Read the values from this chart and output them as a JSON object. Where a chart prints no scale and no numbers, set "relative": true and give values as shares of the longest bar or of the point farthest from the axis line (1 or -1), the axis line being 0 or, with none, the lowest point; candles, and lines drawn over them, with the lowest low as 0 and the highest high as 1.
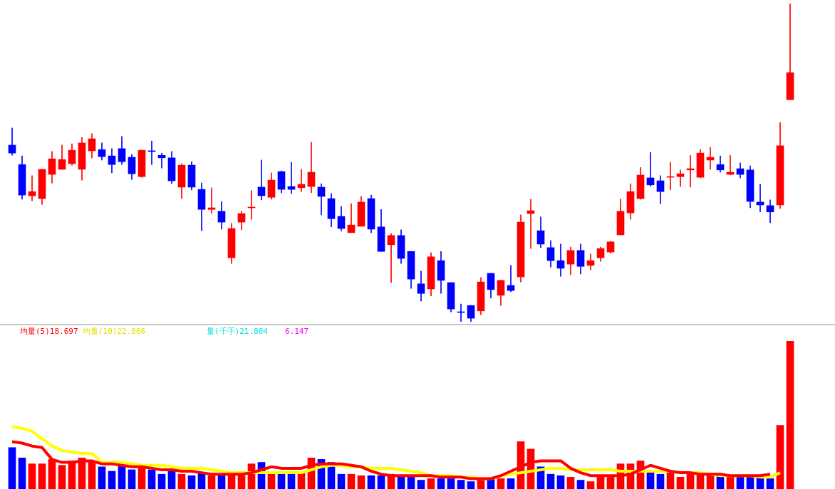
{
  "chart_data": [
    {
      "type": "candlestick",
      "relative": true,
      "categories": [
        null,
        null,
        null,
        null,
        null,
        null,
        null,
        null,
        null,
        null,
        null,
        null,
        null,
        null,
        null,
        null,
        null,
        null,
        null,
        null,
        null,
        null,
        null,
        null,
        null,
        null,
        null,
        null,
        null,
        null,
        null,
        null,
        null,
        null,
        null,
        null,
        null,
        null,
        null,
        null,
        null,
        null,
        null,
        null,
        null,
        null,
        null,
        null,
        null,
        null,
        null,
        null,
        null,
        null,
        null,
        null,
        null,
        null,
        null,
        null,
        null,
        null,
        null,
        null,
        null,
        null,
        null,
        null,
        null,
        null,
        null,
        null,
        null,
        null,
        null,
        null,
        null,
        null,
        null
      ],
      "ohlc": [
        [
          0.555,
          0.609,
          0.523,
          0.53
        ],
        [
          0.494,
          0.521,
          0.385,
          0.398
        ],
        [
          0.396,
          0.459,
          0.38,
          0.409
        ],
        [
          0.387,
          0.479,
          0.369,
          0.479
        ],
        [
          0.463,
          0.535,
          0.436,
          0.512
        ],
        [
          0.479,
          0.555,
          0.479,
          0.51
        ],
        [
          0.497,
          0.559,
          0.492,
          0.539
        ],
        [
          0.479,
          0.579,
          0.445,
          0.562
        ],
        [
          0.537,
          0.591,
          0.515,
          0.575
        ],
        [
          0.541,
          0.562,
          0.508,
          0.519
        ],
        [
          0.521,
          0.544,
          0.468,
          0.494
        ],
        [
          0.544,
          0.582,
          0.494,
          0.503
        ],
        [
          0.517,
          0.526,
          0.447,
          0.465
        ],
        [
          0.456,
          0.539,
          0.454,
          0.539
        ],
        [
          0.537,
          0.568,
          0.494,
          0.535
        ],
        [
          0.523,
          0.53,
          0.483,
          0.515
        ],
        [
          0.515,
          0.535,
          0.434,
          0.443
        ],
        [
          0.423,
          0.497,
          0.387,
          0.492
        ],
        [
          0.492,
          0.503,
          0.414,
          0.423
        ],
        [
          0.416,
          0.436,
          0.286,
          0.353
        ],
        [
          0.353,
          0.421,
          0.34,
          0.358
        ],
        [
          0.347,
          0.378,
          0.291,
          0.313
        ],
        [
          0.201,
          0.309,
          0.183,
          0.293
        ],
        [
          0.313,
          0.347,
          0.289,
          0.34
        ],
        [
          0.358,
          0.412,
          0.322,
          0.36
        ],
        [
          0.423,
          0.508,
          0.383,
          0.396
        ],
        [
          0.391,
          0.468,
          0.385,
          0.445
        ],
        [
          0.472,
          0.474,
          0.405,
          0.416
        ],
        [
          0.425,
          0.501,
          0.403,
          0.416
        ],
        [
          0.421,
          0.479,
          0.409,
          0.432
        ],
        [
          0.425,
          0.564,
          0.405,
          0.47
        ],
        [
          0.423,
          0.434,
          0.336,
          0.394
        ],
        [
          0.387,
          0.403,
          0.298,
          0.324
        ],
        [
          0.331,
          0.362,
          0.286,
          0.293
        ],
        [
          0.28,
          0.371,
          0.28,
          0.304
        ],
        [
          0.3,
          0.394,
          0.3,
          0.376
        ],
        [
          0.387,
          0.398,
          0.28,
          0.291
        ],
        [
          0.298,
          0.353,
          0.221,
          0.221
        ],
        [
          0.242,
          0.277,
          0.123,
          0.271
        ],
        [
          0.271,
          0.289,
          0.183,
          0.199
        ],
        [
          0.221,
          0.221,
          0.105,
          0.134
        ],
        [
          0.119,
          0.159,
          0.065,
          0.089
        ],
        [
          0.103,
          0.217,
          0.081,
          0.204
        ],
        [
          0.192,
          0.221,
          0.089,
          0.13
        ],
        [
          0.123,
          0.123,
          0.031,
          0.04
        ],
        [
          0.031,
          0.056,
          0,
          0.029
        ],
        [
          0.051,
          0.051,
          0,
          0.011
        ],
        [
          0.034,
          0.139,
          0.022,
          0.125
        ],
        [
          0.152,
          0.152,
          0.074,
          0.101
        ],
        [
          0.083,
          0.13,
          0.051,
          0.13
        ],
        [
          0.114,
          0.177,
          0.094,
          0.098
        ],
        [
          0.141,
          0.336,
          0.125,
          0.313
        ],
        [
          0.34,
          0.385,
          0.23,
          0.349
        ],
        [
          0.286,
          0.329,
          0.233,
          0.244
        ],
        [
          0.233,
          0.255,
          0.172,
          0.192
        ],
        [
          0.192,
          0.244,
          0.143,
          0.168
        ],
        [
          0.181,
          0.235,
          0.148,
          0.224
        ],
        [
          0.224,
          0.244,
          0.15,
          0.174
        ],
        [
          0.177,
          0.213,
          0.163,
          0.192
        ],
        [
          0.201,
          0.235,
          0.19,
          0.23
        ],
        [
          0.219,
          0.253,
          0.215,
          0.251
        ],
        [
          0.273,
          0.385,
          0.273,
          0.347
        ],
        [
          0.342,
          0.434,
          0.322,
          0.409
        ],
        [
          0.387,
          0.485,
          0.385,
          0.461
        ],
        [
          0.452,
          0.532,
          0.425,
          0.43
        ],
        [
          0.443,
          0.459,
          0.371,
          0.409
        ],
        [
          0.454,
          0.501,
          0.414,
          0.456
        ],
        [
          0.456,
          0.477,
          0.425,
          0.465
        ],
        [
          0.477,
          0.523,
          0.423,
          0.481
        ],
        [
          0.454,
          0.541,
          0.452,
          0.53
        ],
        [
          0.508,
          0.548,
          0.479,
          0.517
        ],
        [
          0.494,
          0.521,
          0.47,
          0.477
        ],
        [
          0.463,
          0.523,
          0.461,
          0.47
        ],
        [
          0.481,
          0.499,
          0.452,
          0.463
        ],
        [
          0.477,
          0.49,
          0.358,
          0.378
        ],
        [
          0.376,
          0.432,
          0.345,
          0.367
        ],
        [
          0.365,
          0.383,
          0.311,
          0.345
        ],
        [
          0.367,
          0.626,
          0.356,
          0.553
        ],
        [
          0.698,
          1,
          0.698,
          0.783
        ]
      ],
      "colors": [
        "#0000ff",
        "#0000ff",
        "#ff0000",
        "#ff0000",
        "#ff0000",
        "#ff0000",
        "#ff0000",
        "#ff0000",
        "#ff0000",
        "#0000ff",
        "#0000ff",
        "#0000ff",
        "#0000ff",
        "#ff0000",
        "#0000ff",
        "#0000ff",
        "#0000ff",
        "#ff0000",
        "#0000ff",
        "#0000ff",
        "#ff0000",
        "#0000ff",
        "#ff0000",
        "#ff0000",
        "#ff0000",
        "#0000ff",
        "#ff0000",
        "#0000ff",
        "#0000ff",
        "#ff0000",
        "#ff0000",
        "#0000ff",
        "#0000ff",
        "#0000ff",
        "#ff0000",
        "#ff0000",
        "#0000ff",
        "#0000ff",
        "#ff0000",
        "#0000ff",
        "#0000ff",
        "#0000ff",
        "#ff0000",
        "#0000ff",
        "#0000ff",
        "#0000ff",
        "#0000ff",
        "#ff0000",
        "#0000ff",
        "#ff0000",
        "#0000ff",
        "#ff0000",
        "#ff0000",
        "#0000ff",
        "#0000ff",
        "#0000ff",
        "#ff0000",
        "#0000ff",
        "#ff0000",
        "#ff0000",
        "#ff0000",
        "#ff0000",
        "#ff0000",
        "#ff0000",
        "#0000ff",
        "#0000ff",
        "#ff0000",
        "#ff0000",
        "#ff0000",
        "#ff0000",
        "#ff0000",
        "#0000ff",
        "#ff0000",
        "#0000ff",
        "#0000ff",
        "#0000ff",
        "#0000ff",
        "#ff0000",
        "#ff0000"
      ]
    },
    {
      "type": "bar",
      "relative": true,
      "marker": "none",
      "categories": [
        null,
        null,
        null,
        null,
        null,
        null,
        null,
        null,
        null,
        null,
        null,
        null,
        null,
        null,
        null,
        null,
        null,
        null,
        null,
        null,
        null,
        null,
        null,
        null,
        null,
        null,
        null,
        null,
        null,
        null,
        null,
        null,
        null,
        null,
        null,
        null,
        null,
        null,
        null,
        null,
        null,
        null,
        null,
        null,
        null,
        null,
        null,
        null,
        null,
        null,
        null,
        null,
        null,
        null,
        null,
        null,
        null,
        null,
        null,
        null,
        null,
        null,
        null,
        null,
        null,
        null,
        null,
        null,
        null,
        null,
        null,
        null,
        null,
        null,
        null,
        null,
        null,
        null,
        null
      ],
      "annotations": [
        "均量(5)18.697",
        "均量(10)22.866",
        "量(千手)21.804",
        "6.147"
      ],
      "series": [
        {
          "type": "bar",
          "values": [
            0.28,
            0.21,
            0.17,
            0.17,
            0.2,
            0.16,
            0.19,
            0.21,
            0.19,
            0.15,
            0.12,
            0.16,
            0.13,
            0.14,
            0.13,
            0.1,
            0.12,
            0.1,
            0.09,
            0.11,
            0.09,
            0.09,
            0.09,
            0.09,
            0.17,
            0.18,
            0.1,
            0.11,
            0.11,
            0.11,
            0.21,
            0.2,
            0.18,
            0.1,
            0.1,
            0.09,
            0.09,
            0.09,
            0.1,
            0.08,
            0.08,
            0.06,
            0.07,
            0.07,
            0.07,
            0.06,
            0.05,
            0.07,
            0.07,
            0.07,
            0.07,
            0.32,
            0.27,
            0.15,
            0.1,
            0.09,
            0.08,
            0.06,
            0.05,
            0.08,
            0.08,
            0.17,
            0.17,
            0.19,
            0.11,
            0.1,
            0.12,
            0.08,
            0.11,
            0.1,
            0.09,
            0.09,
            0.08,
            0.08,
            0.08,
            0.08,
            0.07,
            0.43,
            1
          ],
          "colors": [
            "#0000ff",
            "#0000ff",
            "#ff0000",
            "#ff0000",
            "#ff0000",
            "#ff0000",
            "#ff0000",
            "#ff0000",
            "#ff0000",
            "#0000ff",
            "#0000ff",
            "#0000ff",
            "#0000ff",
            "#ff0000",
            "#0000ff",
            "#0000ff",
            "#0000ff",
            "#ff0000",
            "#0000ff",
            "#0000ff",
            "#ff0000",
            "#0000ff",
            "#ff0000",
            "#ff0000",
            "#ff0000",
            "#0000ff",
            "#ff0000",
            "#0000ff",
            "#0000ff",
            "#ff0000",
            "#ff0000",
            "#0000ff",
            "#0000ff",
            "#0000ff",
            "#ff0000",
            "#ff0000",
            "#0000ff",
            "#0000ff",
            "#ff0000",
            "#0000ff",
            "#0000ff",
            "#0000ff",
            "#ff0000",
            "#0000ff",
            "#0000ff",
            "#0000ff",
            "#0000ff",
            "#ff0000",
            "#0000ff",
            "#ff0000",
            "#0000ff",
            "#ff0000",
            "#ff0000",
            "#0000ff",
            "#0000ff",
            "#0000ff",
            "#ff0000",
            "#0000ff",
            "#ff0000",
            "#ff0000",
            "#ff0000",
            "#ff0000",
            "#ff0000",
            "#ff0000",
            "#0000ff",
            "#0000ff",
            "#ff0000",
            "#ff0000",
            "#ff0000",
            "#ff0000",
            "#ff0000",
            "#0000ff",
            "#ff0000",
            "#0000ff",
            "#0000ff",
            "#0000ff",
            "#0000ff",
            "#ff0000",
            "#ff0000"
          ]
        },
        {
          "type": "line",
          "color": "#ff0000",
          "values": [
            0.32,
            0.31,
            0.29,
            0.28,
            0.2,
            0.18,
            0.18,
            0.19,
            0.19,
            0.17,
            0.17,
            0.16,
            0.15,
            0.15,
            0.14,
            0.13,
            0.13,
            0.12,
            0.12,
            0.11,
            0.1,
            0.1,
            0.1,
            0.1,
            0.11,
            0.13,
            0.15,
            0.14,
            0.14,
            0.14,
            0.16,
            0.17,
            0.17,
            0.17,
            0.16,
            0.15,
            0.12,
            0.1,
            0.09,
            0.09,
            0.09,
            0.09,
            0.09,
            0.08,
            0.08,
            0.08,
            0.07,
            0.07,
            0.07,
            0.09,
            0.12,
            0.15,
            0.18,
            0.19,
            0.19,
            0.19,
            0.14,
            0.11,
            0.09,
            0.09,
            0.09,
            0.09,
            0.1,
            0.13,
            0.16,
            0.14,
            0.12,
            0.11,
            0.11,
            0.1,
            0.1,
            0.1,
            0.09,
            0.09,
            0.09,
            0.09,
            0.1,
            null,
            null
          ]
        },
        {
          "type": "line",
          "color": "#ffff00",
          "values": [
            0.42,
            0.41,
            0.39,
            0.34,
            0.29,
            0.26,
            0.25,
            0.24,
            0.24,
            0.18,
            0.18,
            0.18,
            0.17,
            0.16,
            0.16,
            0.16,
            0.15,
            0.14,
            0.14,
            0.14,
            0.13,
            0.12,
            0.11,
            0.11,
            0.11,
            0.11,
            0.11,
            0.11,
            0.11,
            0.11,
            0.13,
            0.15,
            0.16,
            0.16,
            0.15,
            0.15,
            0.14,
            0.14,
            0.14,
            0.13,
            0.12,
            0.11,
            0.09,
            0.09,
            0.09,
            0.08,
            0.08,
            0.07,
            0.07,
            0.09,
            0.1,
            0.11,
            0.12,
            0.13,
            0.14,
            0.14,
            0.13,
            0.13,
            0.13,
            0.13,
            0.13,
            0.12,
            0.12,
            0.12,
            0.12,
            0.12,
            0.12,
            0.11,
            0.11,
            0.11,
            0.1,
            0.09,
            0.09,
            0.09,
            0.09,
            0.08,
            0.08,
            0.11,
            null
          ]
        }
      ]
    }
  ]
}
